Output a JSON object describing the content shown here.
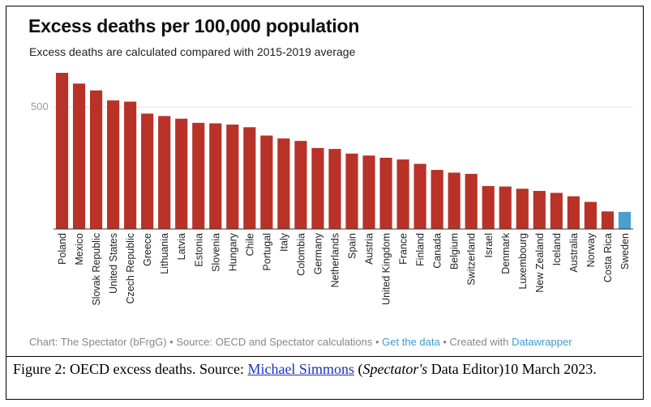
{
  "chart_data": {
    "type": "bar",
    "title": "Excess deaths per 100,000 population",
    "subtitle": "Excess deaths are calculated compared with 2015-2019 average",
    "xlabel": "",
    "ylabel": "",
    "ylim": [
      0,
      650
    ],
    "yticks": [
      500
    ],
    "grid": true,
    "colors": {
      "default": "#b83228",
      "highlight": "#4a9fd0"
    },
    "categories": [
      "Poland",
      "Mexico",
      "Slovak Republic",
      "United States",
      "Czech Republic",
      "Greece",
      "Lithuania",
      "Latvia",
      "Estonia",
      "Slovenia",
      "Hungary",
      "Chile",
      "Portugal",
      "Italy",
      "Colombia",
      "Germany",
      "Netherlands",
      "Spain",
      "Austria",
      "United Kingdom",
      "France",
      "Finland",
      "Canada",
      "Belgium",
      "Switzerland",
      "Israel",
      "Denmark",
      "Luxembourg",
      "New Zealand",
      "Iceland",
      "Australia",
      "Norway",
      "Costa Rica",
      "Sweden"
    ],
    "values": [
      640,
      596,
      568,
      527,
      522,
      473,
      463,
      452,
      435,
      433,
      428,
      417,
      383,
      371,
      361,
      332,
      328,
      309,
      301,
      292,
      285,
      267,
      242,
      231,
      226,
      176,
      174,
      165,
      156,
      148,
      134,
      111,
      72,
      70
    ],
    "highlight": "Sweden"
  },
  "footer": {
    "prefix": "Chart: The Spectator (bFrgG) • Source: OECD and Spectator calculations • ",
    "get_data": "Get the data",
    "middle": " • Created with ",
    "datawrapper": "Datawrapper"
  },
  "caption": {
    "prefix": "Figure 2: OECD excess deaths. Source: ",
    "author": "Michael Simmons",
    "open_paren": " (",
    "publication": "Spectator's",
    "suffix": " Data Editor)10 March 2023."
  }
}
